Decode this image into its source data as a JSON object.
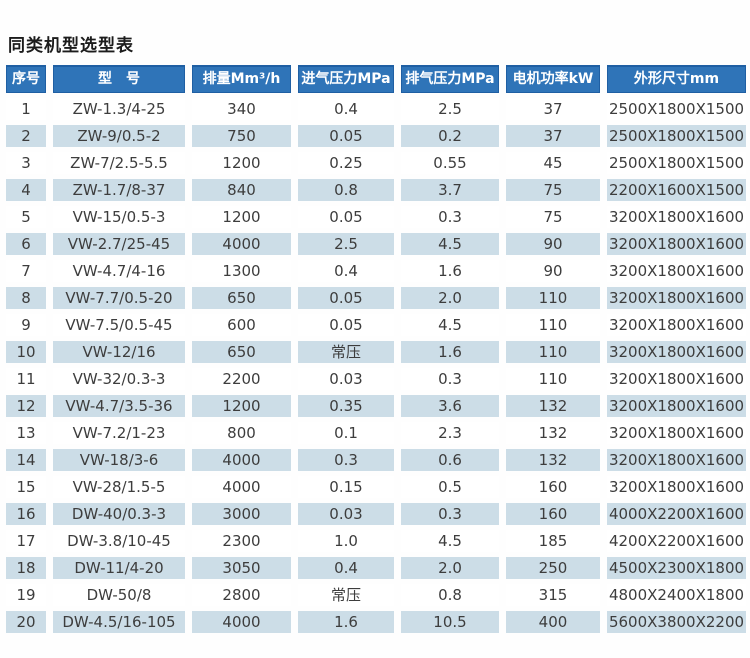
{
  "title": "同类机型选型表",
  "colors": {
    "header_bg": "#2f74b8",
    "header_border": "#1f5fa3",
    "header_text": "#ffffff",
    "row_shaded_bg": "#ccdde7",
    "row_plain_bg": "#ffffff",
    "body_text": "#3d3d3d",
    "title_text": "#1c1c1c"
  },
  "table": {
    "headers": [
      "序号",
      "型　号",
      "排量Mm³/h",
      "进气压力MPa",
      "排气压力MPa",
      "电机功率kW",
      "外形尺寸mm"
    ],
    "rows": [
      [
        "1",
        "ZW-1.3/4-25",
        "340",
        "0.4",
        "2.5",
        "37",
        "2500X1800X1500"
      ],
      [
        "2",
        "ZW-9/0.5-2",
        "750",
        "0.05",
        "0.2",
        "37",
        "2500X1800X1500"
      ],
      [
        "3",
        "ZW-7/2.5-5.5",
        "1200",
        "0.25",
        "0.55",
        "45",
        "2500X1800X1500"
      ],
      [
        "4",
        "ZW-1.7/8-37",
        "840",
        "0.8",
        "3.7",
        "75",
        "2200X1600X1500"
      ],
      [
        "5",
        "VW-15/0.5-3",
        "1200",
        "0.05",
        "0.3",
        "75",
        "3200X1800X1600"
      ],
      [
        "6",
        "VW-2.7/25-45",
        "4000",
        "2.5",
        "4.5",
        "90",
        "3200X1800X1600"
      ],
      [
        "7",
        "VW-4.7/4-16",
        "1300",
        "0.4",
        "1.6",
        "90",
        "3200X1800X1600"
      ],
      [
        "8",
        "VW-7.7/0.5-20",
        "650",
        "0.05",
        "2.0",
        "110",
        "3200X1800X1600"
      ],
      [
        "9",
        "VW-7.5/0.5-45",
        "600",
        "0.05",
        "4.5",
        "110",
        "3200X1800X1600"
      ],
      [
        "10",
        "VW-12/16",
        "650",
        "常压",
        "1.6",
        "110",
        "3200X1800X1600"
      ],
      [
        "11",
        "VW-32/0.3-3",
        "2200",
        "0.03",
        "0.3",
        "110",
        "3200X1800X1600"
      ],
      [
        "12",
        "VW-4.7/3.5-36",
        "1200",
        "0.35",
        "3.6",
        "132",
        "3200X1800X1600"
      ],
      [
        "13",
        "VW-7.2/1-23",
        "800",
        "0.1",
        "2.3",
        "132",
        "3200X1800X1600"
      ],
      [
        "14",
        "VW-18/3-6",
        "4000",
        "0.3",
        "0.6",
        "132",
        "3200X1800X1600"
      ],
      [
        "15",
        "VW-28/1.5-5",
        "4000",
        "0.15",
        "0.5",
        "160",
        "3200X1800X1600"
      ],
      [
        "16",
        "DW-40/0.3-3",
        "3000",
        "0.03",
        "0.3",
        "160",
        "4000X2200X1600"
      ],
      [
        "17",
        "DW-3.8/10-45",
        "2300",
        "1.0",
        "4.5",
        "185",
        "4200X2200X1600"
      ],
      [
        "18",
        "DW-11/4-20",
        "3050",
        "0.4",
        "2.0",
        "250",
        "4500X2300X1800"
      ],
      [
        "19",
        "DW-50/8",
        "2800",
        "常压",
        "0.8",
        "315",
        "4800X2400X1800"
      ],
      [
        "20",
        "DW-4.5/16-105",
        "4000",
        "1.6",
        "10.5",
        "400",
        "5600X3800X2200"
      ]
    ]
  }
}
